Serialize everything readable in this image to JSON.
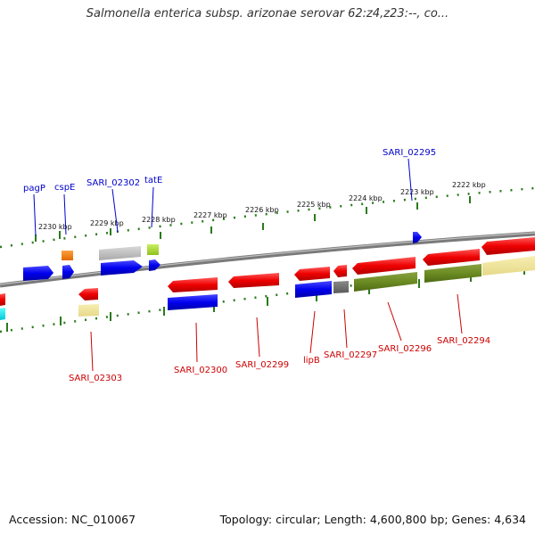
{
  "title": "Salmonella enterica subsp. arizonae serovar 62:z4,z23:--, co...",
  "footer": {
    "accession": "Accession: NC_010067",
    "topology": "Topology: circular; Length: 4,600,800 bp; Genes: 4,634"
  },
  "colors": {
    "label_forward": "#0000cc",
    "label_reverse": "#cc0000",
    "backbone": "#8a8a8a",
    "tick": "#2a7a1a"
  },
  "ticks": [
    "2230 kbp",
    "2229 kbp",
    "2228 kbp",
    "2227 kbp",
    "2226 kbp",
    "2225 kbp",
    "2224 kbp",
    "2223 kbp",
    "2222 kbp"
  ],
  "gene_labels": {
    "top": [
      "pagP",
      "cspE",
      "SARI_02302",
      "tatE",
      "SARI_02295"
    ],
    "bottom": [
      "SARI_02303",
      "SARI_02300",
      "SARI_02299",
      "lipB",
      "SARI_02297",
      "SARI_02296",
      "SARI_02294"
    ]
  }
}
